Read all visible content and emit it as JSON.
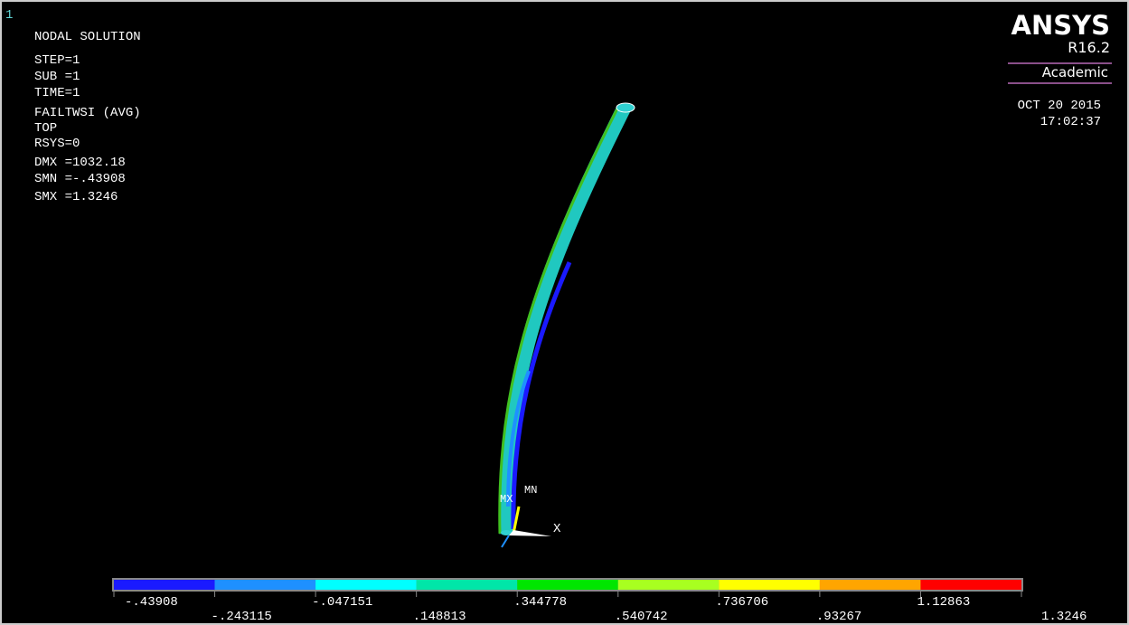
{
  "window": {
    "number": "1"
  },
  "info": {
    "title": "NODAL SOLUTION",
    "lines": [
      "STEP=1",
      "SUB =1",
      "TIME=1",
      "FAILTWSI (AVG)",
      "TOP",
      "RSYS=0",
      "DMX =1032.18",
      "SMN =-.43908",
      "SMX =1.3246"
    ]
  },
  "logo": {
    "name": "ANSYS",
    "release": "R16.2",
    "license": "Academic",
    "date": "OCT 20 2015",
    "time": "17:02:37"
  },
  "markers": {
    "min": "MN",
    "max": "MX",
    "axis": "X"
  },
  "legend": {
    "colors": [
      "#1a1aff",
      "#1e90ff",
      "#00ffff",
      "#00e6a8",
      "#00e600",
      "#a8ff20",
      "#ffff00",
      "#ffa500",
      "#ff0000"
    ],
    "labels": [
      "-.43908",
      "-.243115",
      "-.047151",
      ".148813",
      ".344778",
      ".540742",
      ".736706",
      ".93267",
      "1.12863",
      "1.3246"
    ]
  }
}
